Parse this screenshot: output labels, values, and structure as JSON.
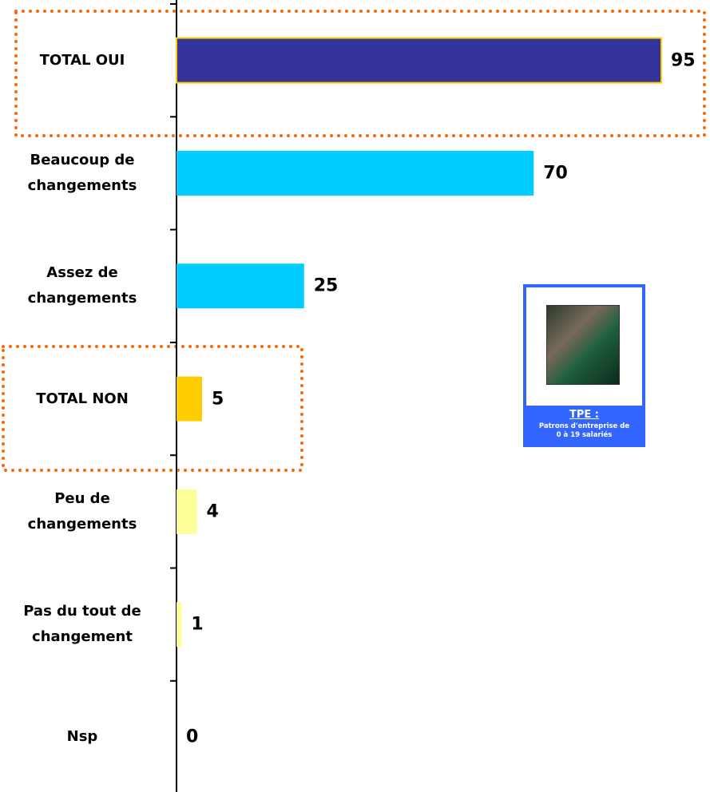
{
  "chart_data": {
    "type": "bar",
    "orientation": "horizontal",
    "categories": [
      "TOTAL OUI",
      "Beaucoup de changements",
      "Assez de changements",
      "TOTAL NON",
      "Peu de changements",
      "Pas du tout de changement",
      "Nsp"
    ],
    "values": [
      95,
      70,
      25,
      5,
      4,
      1,
      0
    ],
    "colors": [
      "#333399",
      "#00ccff",
      "#00ccff",
      "#ffcc00",
      "#ffff99",
      "#ffff99",
      "#ffff99"
    ]
  },
  "inset": {
    "title": "TPE :",
    "subtitle": "Patrons d'entreprise de 0 à 19 salariés"
  }
}
